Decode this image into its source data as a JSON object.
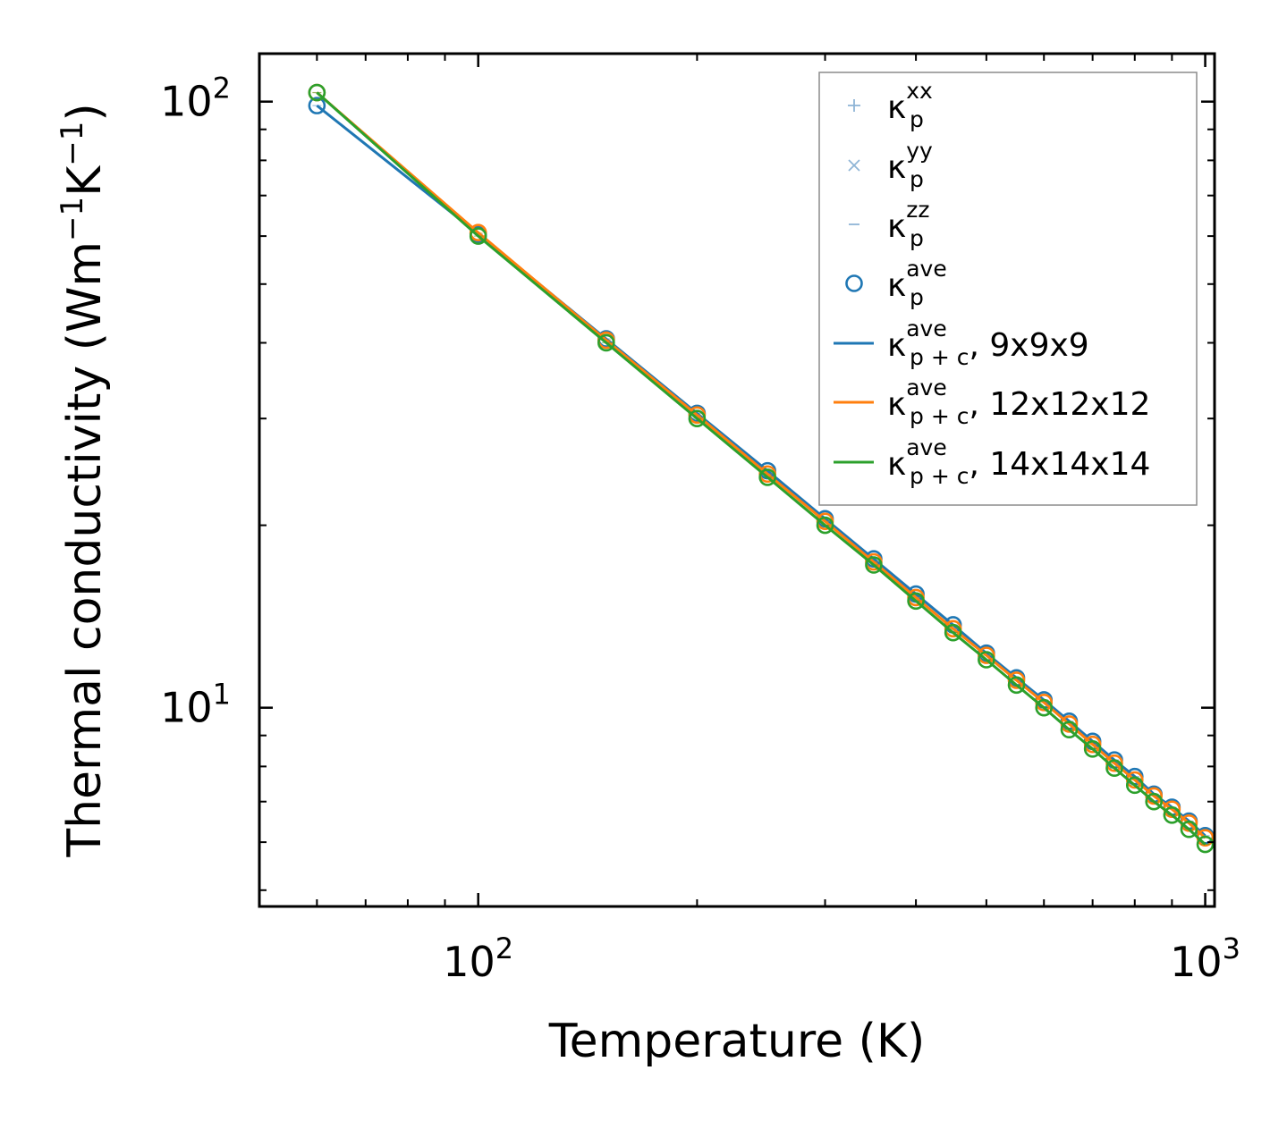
{
  "chart_data": {
    "type": "line",
    "xscale": "log",
    "yscale": "log",
    "xlabel": "Temperature (K)",
    "ylabel_parts": {
      "base": "Thermal conductivity (Wm",
      "sup1": "−1",
      "mid": "K",
      "sup2": "−1",
      "end": ")"
    },
    "xlim": [
      50,
      1030
    ],
    "ylim": [
      4.7,
      120
    ],
    "x_ticks": [
      {
        "value": 100,
        "base": "10",
        "exp": "2"
      },
      {
        "value": 1000,
        "base": "10",
        "exp": "3"
      }
    ],
    "y_ticks": [
      {
        "value": 10,
        "base": "10",
        "exp": "1"
      },
      {
        "value": 100,
        "base": "10",
        "exp": "2"
      }
    ],
    "x": [
      60,
      100,
      150,
      200,
      250,
      300,
      350,
      400,
      450,
      500,
      550,
      600,
      650,
      700,
      750,
      800,
      850,
      900,
      950,
      1000
    ],
    "series": [
      {
        "name": "9x9x9",
        "color": "#1f77b4",
        "values": [
          98.5,
          60.5,
          40.6,
          30.6,
          24.6,
          20.5,
          17.6,
          15.4,
          13.7,
          12.3,
          11.2,
          10.3,
          9.5,
          8.8,
          8.2,
          7.7,
          7.2,
          6.85,
          6.5,
          6.15
        ]
      },
      {
        "name": "12x12x12",
        "color": "#ff7f0e",
        "values": [
          103.5,
          60.8,
          40.4,
          30.4,
          24.3,
          20.3,
          17.4,
          15.2,
          13.5,
          12.2,
          11.1,
          10.2,
          9.4,
          8.7,
          8.1,
          7.6,
          7.15,
          6.8,
          6.45,
          6.1
        ]
      },
      {
        "name": "14x14x14",
        "color": "#2ca02c",
        "values": [
          103.5,
          60.0,
          40.0,
          30.0,
          24.0,
          20.0,
          17.2,
          15.0,
          13.3,
          12.0,
          10.9,
          10.0,
          9.2,
          8.55,
          7.95,
          7.45,
          7.0,
          6.65,
          6.3,
          5.95
        ]
      }
    ],
    "legend": {
      "position": "top-right",
      "entries": [
        {
          "marker": "plus",
          "color": "#8fb5d6",
          "sym": "κ",
          "sub": "p",
          "sup": "xx",
          "suffix": ""
        },
        {
          "marker": "x",
          "color": "#8fb5d6",
          "sym": "κ",
          "sub": "p",
          "sup": "yy",
          "suffix": ""
        },
        {
          "marker": "dash",
          "color": "#8fb5d6",
          "sym": "κ",
          "sub": "p",
          "sup": "zz",
          "suffix": ""
        },
        {
          "marker": "circle",
          "color": "#1f77b4",
          "sym": "κ",
          "sub": "p",
          "sup": "ave",
          "suffix": ""
        },
        {
          "marker": "line",
          "color": "#1f77b4",
          "sym": "κ",
          "sub": "p + c",
          "sup": "ave",
          "suffix": ", 9x9x9"
        },
        {
          "marker": "line",
          "color": "#ff7f0e",
          "sym": "κ",
          "sub": "p + c",
          "sup": "ave",
          "suffix": ", 12x12x12"
        },
        {
          "marker": "line",
          "color": "#2ca02c",
          "sym": "κ",
          "sub": "p + c",
          "sup": "ave",
          "suffix": ", 14x14x14"
        }
      ]
    }
  }
}
